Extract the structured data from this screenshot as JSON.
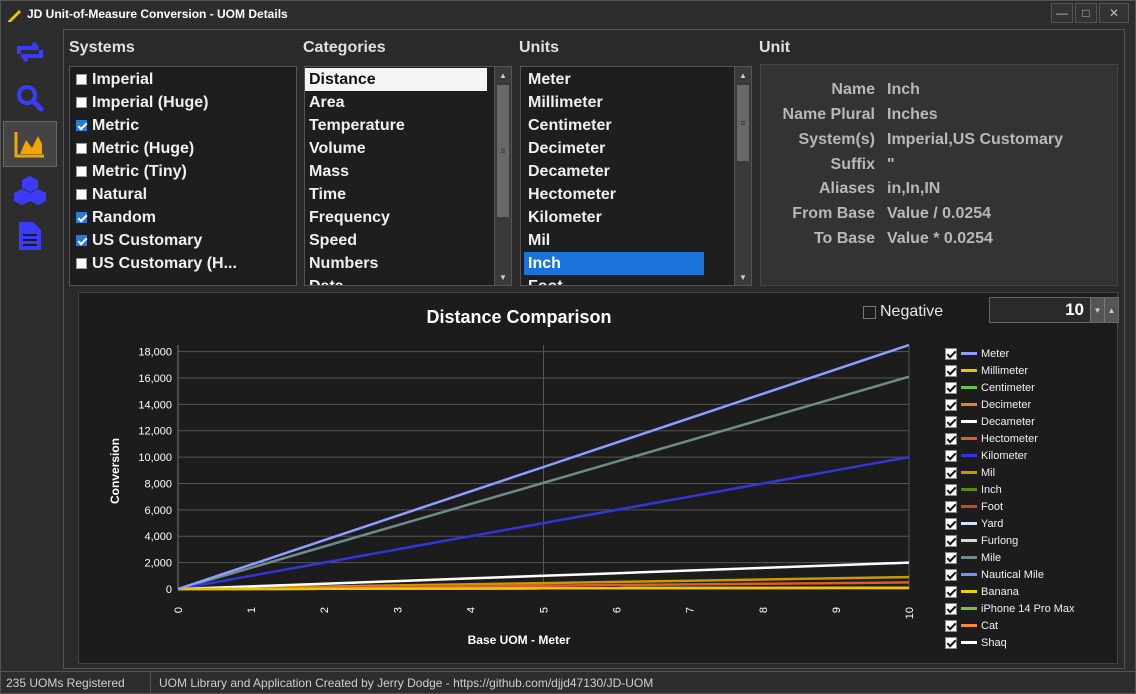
{
  "window": {
    "title": "JD Unit-of-Measure Conversion - UOM Details",
    "buttons": [
      "minimize",
      "maximize",
      "close"
    ]
  },
  "sidebar": {
    "items": [
      {
        "icon": "convert-icon",
        "active": false
      },
      {
        "icon": "search-icon",
        "active": false
      },
      {
        "icon": "chart-icon",
        "active": true
      },
      {
        "icon": "cubes-icon",
        "active": false
      },
      {
        "icon": "document-icon",
        "active": false
      }
    ],
    "accent": "#3b3bff"
  },
  "systems": {
    "title": "Systems",
    "items": [
      {
        "label": "Imperial",
        "checked": false
      },
      {
        "label": "Imperial (Huge)",
        "checked": false
      },
      {
        "label": "Metric",
        "checked": true
      },
      {
        "label": "Metric (Huge)",
        "checked": false
      },
      {
        "label": "Metric (Tiny)",
        "checked": false
      },
      {
        "label": "Natural",
        "checked": false
      },
      {
        "label": "Random",
        "checked": true
      },
      {
        "label": "US Customary",
        "checked": true
      },
      {
        "label": "US Customary (H..."
      }
    ]
  },
  "categories": {
    "title": "Categories",
    "selected": "Distance",
    "items": [
      "Distance",
      "Area",
      "Temperature",
      "Volume",
      "Mass",
      "Time",
      "Frequency",
      "Speed",
      "Numbers",
      "Data"
    ]
  },
  "units": {
    "title": "Units",
    "selected": "Inch",
    "items": [
      "Meter",
      "Millimeter",
      "Centimeter",
      "Decimeter",
      "Decameter",
      "Hectometer",
      "Kilometer",
      "Mil",
      "Inch",
      "Foot"
    ]
  },
  "unit_details": {
    "title": "Unit",
    "rows": [
      {
        "key": "Name",
        "value": "Inch"
      },
      {
        "key": "Name Plural",
        "value": "Inches"
      },
      {
        "key": "System(s)",
        "value": "Imperial,US Customary"
      },
      {
        "key": "Suffix",
        "value": "\""
      },
      {
        "key": "Aliases",
        "value": "in,In,IN"
      },
      {
        "key": "From Base",
        "value": "Value / 0.0254"
      },
      {
        "key": "To Base",
        "value": "Value * 0.0254"
      }
    ]
  },
  "chart_controls": {
    "negative_label": "Negative",
    "negative_checked": false,
    "spin_value": "10"
  },
  "chart_data": {
    "type": "line",
    "title": "Distance Comparison",
    "xlabel": "Base UOM - Meter",
    "ylabel": "Conversion",
    "xlim": [
      0,
      10
    ],
    "ylim": [
      0,
      18500
    ],
    "x_ticks": [
      "0",
      "1",
      "2",
      "3",
      "4",
      "5",
      "6",
      "7",
      "8",
      "9",
      "10"
    ],
    "y_ticks": [
      "0",
      "2,000",
      "4,000",
      "6,000",
      "8,000",
      "10,000",
      "12,000",
      "14,000",
      "16,000",
      "18,000"
    ],
    "grid": true,
    "legend": "right",
    "series": [
      {
        "name": "Meter",
        "color": "#8da0ff",
        "values": [
          0,
          1850,
          3700,
          5550,
          7400,
          9250,
          11100,
          12950,
          14800,
          16650,
          18500
        ]
      },
      {
        "name": "Millimeter",
        "color": "#f2c200",
        "values": [
          0,
          10,
          20,
          30,
          40,
          50,
          60,
          70,
          80,
          90,
          100
        ]
      },
      {
        "name": "Centimeter",
        "color": "#6cc24a",
        "values": [
          0,
          10,
          20,
          30,
          40,
          50,
          60,
          70,
          80,
          90,
          100
        ]
      },
      {
        "name": "Decimeter",
        "color": "#f07a2a",
        "values": [
          0,
          10,
          20,
          30,
          40,
          50,
          60,
          70,
          80,
          90,
          100
        ]
      },
      {
        "name": "Decameter",
        "color": "#ffffff",
        "values": [
          0,
          200,
          400,
          600,
          800,
          1000,
          1200,
          1400,
          1600,
          1800,
          2000
        ]
      },
      {
        "name": "Hectometer",
        "color": "#e05a2a",
        "values": [
          0,
          50,
          100,
          150,
          200,
          250,
          300,
          350,
          400,
          450,
          500
        ]
      },
      {
        "name": "Kilometer",
        "color": "#3434d8",
        "values": [
          0,
          1000,
          2000,
          3000,
          4000,
          5000,
          6000,
          7000,
          8000,
          9000,
          10000
        ]
      },
      {
        "name": "Mil",
        "color": "#c89a00",
        "values": [
          0,
          90,
          180,
          270,
          360,
          450,
          540,
          630,
          720,
          810,
          900
        ]
      },
      {
        "name": "Inch",
        "color": "#5a8a10",
        "values": [
          0,
          10,
          20,
          30,
          40,
          50,
          60,
          70,
          80,
          90,
          100
        ]
      },
      {
        "name": "Foot",
        "color": "#d0451b",
        "values": [
          0,
          10,
          20,
          30,
          40,
          50,
          60,
          70,
          80,
          90,
          100
        ]
      },
      {
        "name": "Yard",
        "color": "#c8e6ff",
        "values": [
          0,
          10,
          20,
          30,
          40,
          50,
          60,
          70,
          80,
          90,
          100
        ]
      },
      {
        "name": "Furlong",
        "color": "#d8d8d8",
        "values": [
          0,
          10,
          20,
          30,
          40,
          50,
          60,
          70,
          80,
          90,
          100
        ]
      },
      {
        "name": "Mile",
        "color": "#6e8a8a",
        "values": [
          0,
          1610,
          3220,
          4830,
          6440,
          8050,
          9660,
          11270,
          12880,
          14490,
          16100
        ]
      },
      {
        "name": "Nautical Mile",
        "color": "#7e8cff",
        "values": [
          0,
          10,
          20,
          30,
          40,
          50,
          60,
          70,
          80,
          90,
          100
        ]
      },
      {
        "name": "Banana",
        "color": "#f0d000",
        "values": [
          0,
          10,
          20,
          30,
          40,
          50,
          60,
          70,
          80,
          90,
          100
        ]
      },
      {
        "name": "iPhone 14 Pro Max",
        "color": "#7ac23a",
        "values": [
          0,
          10,
          20,
          30,
          40,
          50,
          60,
          70,
          80,
          90,
          100
        ]
      },
      {
        "name": "Cat",
        "color": "#f08a3a",
        "values": [
          0,
          10,
          20,
          30,
          40,
          50,
          60,
          70,
          80,
          90,
          100
        ]
      },
      {
        "name": "Shaq",
        "color": "#ffffff",
        "values": [
          0,
          10,
          20,
          30,
          40,
          50,
          60,
          70,
          80,
          90,
          100
        ]
      }
    ]
  },
  "status": {
    "left": "235 UOMs Registered",
    "right": "UOM Library and Application Created by Jerry Dodge - https://github.com/djjd47130/JD-UOM"
  }
}
